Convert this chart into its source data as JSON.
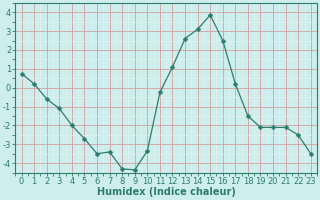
{
  "x": [
    0,
    1,
    2,
    3,
    4,
    5,
    6,
    7,
    8,
    9,
    10,
    11,
    12,
    13,
    14,
    15,
    16,
    17,
    18,
    19,
    20,
    21,
    22,
    23
  ],
  "y": [
    0.75,
    0.2,
    -0.6,
    -1.1,
    -2.0,
    -2.7,
    -3.5,
    -3.4,
    -4.3,
    -4.35,
    -3.35,
    -0.25,
    1.1,
    2.6,
    3.1,
    3.85,
    2.5,
    0.2,
    -1.5,
    -2.1,
    -2.1,
    -2.1,
    -2.5,
    -3.5
  ],
  "line_color": "#2e7d6e",
  "marker": "D",
  "marker_size": 2.5,
  "bg_color": "#cdeeed",
  "major_grid_color": "#d4a0a0",
  "minor_grid_color": "#dff4f2",
  "xlabel": "Humidex (Indice chaleur)",
  "xlim": [
    -0.5,
    23.5
  ],
  "ylim": [
    -4.5,
    4.5
  ],
  "yticks": [
    -4,
    -3,
    -2,
    -1,
    0,
    1,
    2,
    3,
    4
  ],
  "xticks": [
    0,
    1,
    2,
    3,
    4,
    5,
    6,
    7,
    8,
    9,
    10,
    11,
    12,
    13,
    14,
    15,
    16,
    17,
    18,
    19,
    20,
    21,
    22,
    23
  ],
  "tick_color": "#2e7d6e",
  "label_fontsize": 6,
  "xlabel_fontsize": 7
}
